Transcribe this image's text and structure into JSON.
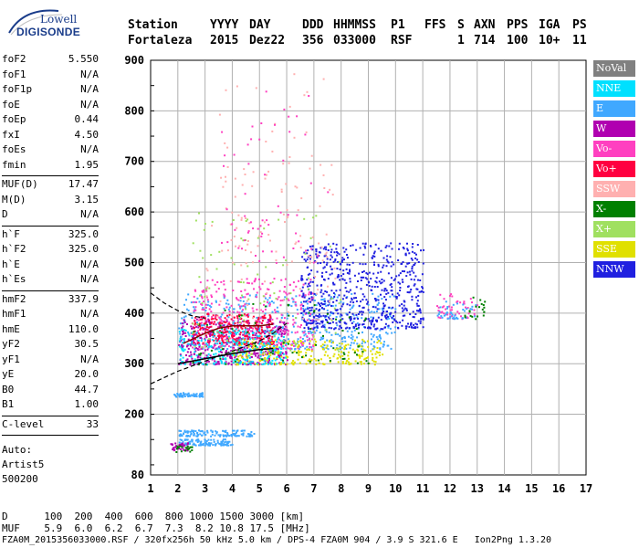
{
  "logo": {
    "line1": "Lowell",
    "line2": "DIGISONDE"
  },
  "header": {
    "labels": [
      {
        "text": "Station",
        "x": 140
      },
      {
        "text": "YYYY",
        "x": 230
      },
      {
        "text": "DAY",
        "x": 273
      },
      {
        "text": "DDD",
        "x": 331
      },
      {
        "text": "HHMMSS",
        "x": 365
      },
      {
        "text": "P1",
        "x": 428
      },
      {
        "text": "FFS",
        "x": 465
      },
      {
        "text": "S",
        "x": 501
      },
      {
        "text": "AXN",
        "x": 519
      },
      {
        "text": "PPS",
        "x": 555
      },
      {
        "text": "IGA",
        "x": 590
      },
      {
        "text": "PS",
        "x": 627
      }
    ],
    "values": [
      {
        "text": "Fortaleza",
        "x": 140
      },
      {
        "text": "2015",
        "x": 230
      },
      {
        "text": "Dez22",
        "x": 273
      },
      {
        "text": "356",
        "x": 331
      },
      {
        "text": "033000",
        "x": 365
      },
      {
        "text": "RSF",
        "x": 428
      },
      {
        "text": "1",
        "x": 501
      },
      {
        "text": "714",
        "x": 519
      },
      {
        "text": "100",
        "x": 555
      },
      {
        "text": "10+",
        "x": 590
      },
      {
        "text": "11",
        "x": 627
      }
    ]
  },
  "params": [
    {
      "name": "foF2",
      "value": "5.550"
    },
    {
      "name": "foF1",
      "value": "N/A"
    },
    {
      "name": "foF1p",
      "value": "N/A"
    },
    {
      "name": "foE",
      "value": "N/A"
    },
    {
      "name": "foEp",
      "value": "0.44"
    },
    {
      "name": "fxI",
      "value": "4.50"
    },
    {
      "name": "foEs",
      "value": "N/A"
    },
    {
      "name": "fmin",
      "value": "1.95"
    },
    {
      "sep": true
    },
    {
      "name": "MUF(D)",
      "value": "17.47"
    },
    {
      "name": "M(D)",
      "value": "3.15"
    },
    {
      "name": "D",
      "value": "N/A"
    },
    {
      "sep": true
    },
    {
      "name": "h`F",
      "value": "325.0"
    },
    {
      "name": "h`F2",
      "value": "325.0"
    },
    {
      "name": "h`E",
      "value": "N/A"
    },
    {
      "name": "h`Es",
      "value": "N/A"
    },
    {
      "sep": true
    },
    {
      "name": "hmF2",
      "value": "337.9"
    },
    {
      "name": "hmF1",
      "value": "N/A"
    },
    {
      "name": "hmE",
      "value": "110.0"
    },
    {
      "name": "yF2",
      "value": "30.5"
    },
    {
      "name": "yF1",
      "value": "N/A"
    },
    {
      "name": "yE",
      "value": "20.0"
    },
    {
      "name": "B0",
      "value": "44.7"
    },
    {
      "name": "B1",
      "value": "1.00"
    },
    {
      "sep": true
    },
    {
      "name": "C-level",
      "value": "33"
    },
    {
      "sep": true
    }
  ],
  "autoscale": {
    "line1": "Auto:",
    "line2": "Artist5",
    "line3": "500200"
  },
  "legend": [
    {
      "label": "NoVal",
      "color": "#808080"
    },
    {
      "label": "NNE",
      "color": "#00e0ff"
    },
    {
      "label": "E",
      "color": "#40a8ff"
    },
    {
      "label": "W",
      "color": "#b000b0"
    },
    {
      "label": "Vo-",
      "color": "#ff40c0"
    },
    {
      "label": "Vo+",
      "color": "#ff0040"
    },
    {
      "label": "SSW",
      "color": "#ffb0b0"
    },
    {
      "label": "X-",
      "color": "#008000"
    },
    {
      "label": "X+",
      "color": "#a0e060"
    },
    {
      "label": "SSE",
      "color": "#e0e000"
    },
    {
      "label": "NNW",
      "color": "#2020e0"
    }
  ],
  "bottom": {
    "d_row": "D      100  200  400  600  800 1000 1500 3000 [km]",
    "muf_row": "MUF    5.9  6.0  6.2  6.7  7.3  8.2 10.8 17.5 [MHz]",
    "footer": "FZA0M_2015356033000.RSF / 320fx256h 50 kHz 5.0 km / DPS-4 FZA0M 904 / 3.9 S 321.6 E   Ion2Png 1.3.20"
  },
  "chart_data": {
    "type": "scatter",
    "xlim": [
      1,
      17
    ],
    "ylim": [
      80,
      900
    ],
    "xticks": [
      1,
      2,
      3,
      4,
      5,
      6,
      7,
      8,
      9,
      10,
      11,
      12,
      13,
      14,
      15,
      16,
      17
    ],
    "yticks": [
      80,
      200,
      300,
      400,
      500,
      600,
      700,
      800,
      900
    ],
    "grid": true,
    "clusters": [
      {
        "name": "E",
        "color": "#40a8ff",
        "x": [
          2.0,
          10.0
        ],
        "y": [
          330,
          440
        ],
        "n": 500
      },
      {
        "name": "W",
        "color": "#b000b0",
        "x": [
          2.0,
          6.0
        ],
        "y": [
          300,
          390
        ],
        "n": 420
      },
      {
        "name": "Vo-",
        "color": "#ff40c0",
        "x": [
          2.5,
          7.0
        ],
        "y": [
          330,
          470
        ],
        "n": 320
      },
      {
        "name": "Vo+",
        "color": "#ff0040",
        "x": [
          2.5,
          5.5
        ],
        "y": [
          340,
          400
        ],
        "n": 260
      },
      {
        "name": "NNW",
        "color": "#2020e0",
        "x": [
          6.5,
          11.0
        ],
        "y": [
          370,
          540
        ],
        "n": 650
      },
      {
        "name": "SSE",
        "color": "#e0e000",
        "x": [
          4.0,
          9.5
        ],
        "y": [
          300,
          350
        ],
        "n": 260
      },
      {
        "name": "NNE",
        "color": "#00e0ff",
        "x": [
          2.0,
          6.0
        ],
        "y": [
          300,
          370
        ],
        "n": 220
      },
      {
        "name": "X-",
        "color": "#008000",
        "x": [
          2.5,
          9.0
        ],
        "y": [
          300,
          420
        ],
        "n": 80
      },
      {
        "name": "X+",
        "color": "#a0e060",
        "x": [
          2.5,
          8.0
        ],
        "y": [
          320,
          600
        ],
        "n": 100
      },
      {
        "name": "SSW",
        "color": "#ffb0b0",
        "x": [
          3.0,
          8.0
        ],
        "y": [
          380,
          700
        ],
        "n": 80
      },
      {
        "name": "E",
        "color": "#40a8ff",
        "x": [
          1.8,
          2.9
        ],
        "y": [
          236,
          244
        ],
        "n": 60
      },
      {
        "name": "E",
        "color": "#40a8ff",
        "x": [
          2.0,
          4.8
        ],
        "y": [
          158,
          170
        ],
        "n": 120
      },
      {
        "name": "E",
        "color": "#40a8ff",
        "x": [
          2.0,
          4.0
        ],
        "y": [
          140,
          152
        ],
        "n": 100
      },
      {
        "name": "W",
        "color": "#b000b0",
        "x": [
          1.7,
          2.4
        ],
        "y": [
          130,
          145
        ],
        "n": 40
      },
      {
        "name": "X-",
        "color": "#008000",
        "x": [
          1.9,
          2.5
        ],
        "y": [
          126,
          142
        ],
        "n": 20
      },
      {
        "name": "Vo-",
        "color": "#ff40c0",
        "x": [
          11.5,
          13.0
        ],
        "y": [
          390,
          440
        ],
        "n": 50
      },
      {
        "name": "E",
        "color": "#40a8ff",
        "x": [
          11.5,
          13.0
        ],
        "y": [
          390,
          425
        ],
        "n": 40
      },
      {
        "name": "X-",
        "color": "#008000",
        "x": [
          12.5,
          13.3
        ],
        "y": [
          390,
          440
        ],
        "n": 20
      },
      {
        "name": "SSW",
        "color": "#ffb0b0",
        "x": [
          3.5,
          7.5
        ],
        "y": [
          500,
          880
        ],
        "n": 60
      },
      {
        "name": "Vo-",
        "color": "#ff40c0",
        "x": [
          3.5,
          7.5
        ],
        "y": [
          500,
          850
        ],
        "n": 60
      }
    ],
    "trace_solid": [
      [
        2.0,
        300
      ],
      [
        3.0,
        310
      ],
      [
        4.0,
        320
      ],
      [
        5.0,
        328
      ],
      [
        5.5,
        330
      ]
    ],
    "trace_dashed": [
      [
        1.0,
        260
      ],
      [
        2.0,
        285
      ],
      [
        3.0,
        305
      ],
      [
        4.0,
        325
      ],
      [
        5.0,
        345
      ],
      [
        5.5,
        360
      ],
      [
        6.0,
        380
      ]
    ],
    "trace_dashed_upper": [
      [
        1.0,
        440
      ],
      [
        1.5,
        420
      ],
      [
        2.0,
        405
      ],
      [
        2.5,
        395
      ],
      [
        3.0,
        390
      ]
    ],
    "trace_red": [
      [
        2.2,
        340
      ],
      [
        3.0,
        360
      ],
      [
        3.5,
        370
      ],
      [
        4.0,
        375
      ],
      [
        5.0,
        375
      ],
      [
        5.5,
        378
      ]
    ]
  }
}
